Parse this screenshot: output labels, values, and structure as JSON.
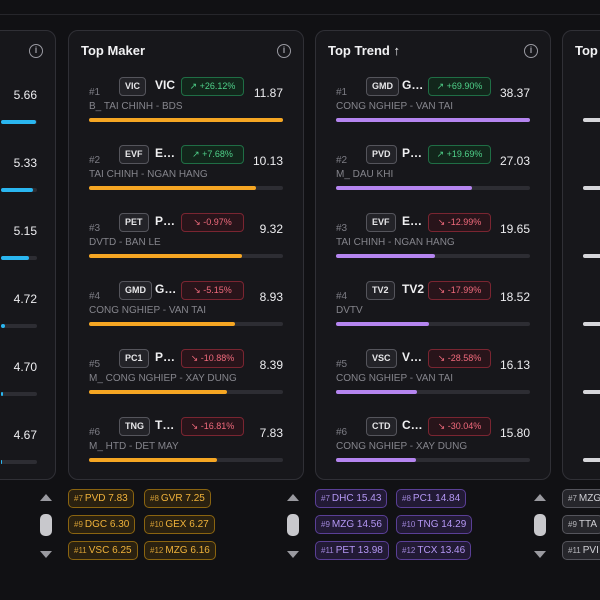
{
  "left_panel": {
    "values": [
      "5.66",
      "5.33",
      "5.15",
      "4.72",
      "4.70",
      "4.67"
    ],
    "bar_fraction": [
      0.98,
      0.9,
      0.78,
      0.12,
      0.06,
      0.04
    ]
  },
  "top_maker": {
    "title": "Top Maker",
    "rows": [
      {
        "rank": "#1",
        "tag": "VIC",
        "symbol": "VIC",
        "change": "↗ +26.12%",
        "dir": "up",
        "value": "11.87",
        "sector": "B_ TAI CHINH - BDS",
        "bar": 1.0
      },
      {
        "rank": "#2",
        "tag": "EVF",
        "symbol": "EVF",
        "change": "↗ +7.68%",
        "dir": "up",
        "value": "10.13",
        "sector": "TAI CHINH - NGAN HANG",
        "bar": 0.86
      },
      {
        "rank": "#3",
        "tag": "PET",
        "symbol": "PET",
        "change": "↘ -0.97%",
        "dir": "down",
        "value": "9.32",
        "sector": "DVTD - BAN LE",
        "bar": 0.79
      },
      {
        "rank": "#4",
        "tag": "GMD",
        "symbol": "GMD",
        "change": "↘ -5.15%",
        "dir": "down",
        "value": "8.93",
        "sector": "CONG NGHIEP - VAN TAI",
        "bar": 0.75
      },
      {
        "rank": "#5",
        "tag": "PC1",
        "symbol": "PC1",
        "change": "↘ -10.88%",
        "dir": "down",
        "value": "8.39",
        "sector": "M_ CONG NGHIEP - XAY DUNG",
        "bar": 0.71
      },
      {
        "rank": "#6",
        "tag": "TNG",
        "symbol": "TNG",
        "change": "↘ -16.81%",
        "dir": "down",
        "value": "7.83",
        "sector": "M_ HTD - DET MAY",
        "bar": 0.66
      }
    ],
    "chips": [
      {
        "rank": "#7",
        "label": "PVD 7.83"
      },
      {
        "rank": "#8",
        "label": "GVR 7.25"
      },
      {
        "rank": "#9",
        "label": "DGC 6.30"
      },
      {
        "rank": "#10",
        "label": "GEX 6.27"
      },
      {
        "rank": "#11",
        "label": "VSC 6.25"
      },
      {
        "rank": "#12",
        "label": "MZG 6.16"
      }
    ]
  },
  "top_trend": {
    "title": "Top Trend ↑",
    "rows": [
      {
        "rank": "#1",
        "tag": "GMD",
        "symbol": "GMD",
        "change": "↗ +69.90%",
        "dir": "up",
        "value": "38.37",
        "sector": "CONG NGHIEP - VAN TAI",
        "bar": 1.0
      },
      {
        "rank": "#2",
        "tag": "PVD",
        "symbol": "PVD",
        "change": "↗ +19.69%",
        "dir": "up",
        "value": "27.03",
        "sector": "M_ DAU KHI",
        "bar": 0.7
      },
      {
        "rank": "#3",
        "tag": "EVF",
        "symbol": "EVF",
        "change": "↘ -12.99%",
        "dir": "down",
        "value": "19.65",
        "sector": "TAI CHINH - NGAN HANG",
        "bar": 0.51
      },
      {
        "rank": "#4",
        "tag": "TV2",
        "symbol": "TV2",
        "change": "↘ -17.99%",
        "dir": "down",
        "value": "18.52",
        "sector": "DVTV",
        "bar": 0.48
      },
      {
        "rank": "#5",
        "tag": "VSC",
        "symbol": "VSC",
        "change": "↘ -28.58%",
        "dir": "down",
        "value": "16.13",
        "sector": "CONG NGHIEP - VAN TAI",
        "bar": 0.42
      },
      {
        "rank": "#6",
        "tag": "CTD",
        "symbol": "CTD",
        "change": "↘ -30.04%",
        "dir": "down",
        "value": "15.80",
        "sector": "CONG NGHIEP - XAY DUNG",
        "bar": 0.41
      }
    ],
    "chips": [
      {
        "rank": "#7",
        "label": "DHC 15.43"
      },
      {
        "rank": "#8",
        "label": "PC1 14.84"
      },
      {
        "rank": "#9",
        "label": "MZG 14.56"
      },
      {
        "rank": "#10",
        "label": "TNG 14.29"
      },
      {
        "rank": "#11",
        "label": "PET 13.98"
      },
      {
        "rank": "#12",
        "label": "TCX 13.46"
      }
    ]
  },
  "right_panel": {
    "title": "Top S",
    "chips": [
      {
        "rank": "#7",
        "label": "MZG"
      },
      {
        "rank": "#9",
        "label": "TTA"
      },
      {
        "rank": "#11",
        "label": "PVI"
      }
    ]
  },
  "colors": {
    "maker_bar": "#f5a623",
    "trend_bar": "#b585f0",
    "left_bar": "#2ab6f0",
    "right_bar": "#d6d6da"
  }
}
